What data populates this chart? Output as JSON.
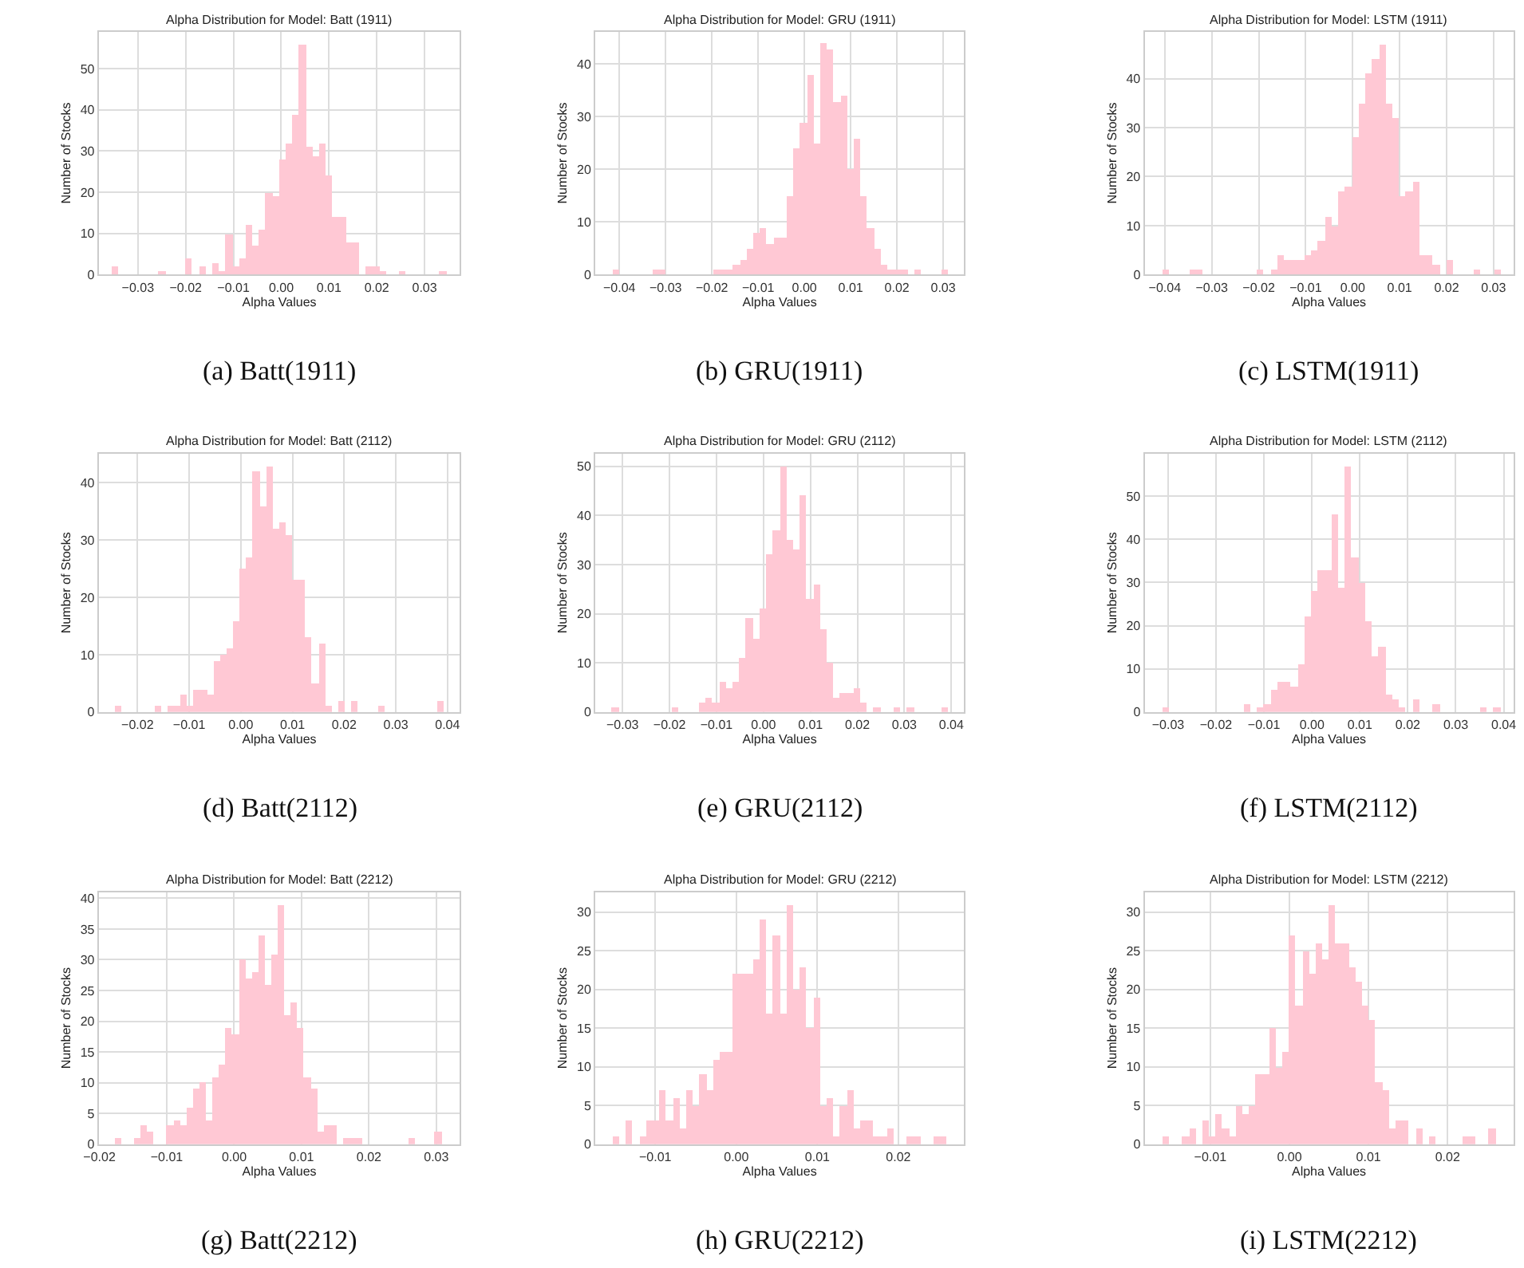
{
  "chart_data": [
    {
      "type": "histogram",
      "title": "Alpha Distribution for Model: Batt (1911)",
      "xlabel": "Alpha Values",
      "ylabel": "Number of Stocks",
      "annotations": [
        "(a) Batt(1911)"
      ],
      "color": "#ffc8d4",
      "grid": true,
      "bins": [
        -0.0355,
        -0.0341,
        -0.0327,
        -0.0313,
        -0.0299,
        -0.0285,
        -0.0271,
        -0.0257,
        -0.0243,
        -0.0229,
        -0.0215,
        -0.0201,
        -0.0187,
        -0.0173,
        -0.0159,
        -0.0145,
        -0.0131,
        -0.0117,
        -0.0103,
        -0.0089,
        -0.0075,
        -0.0061,
        -0.0047,
        -0.0033,
        -0.0019,
        -0.0005,
        0.0009,
        0.0023,
        0.0037,
        0.0051,
        0.0065,
        0.0079,
        0.0093,
        0.0107,
        0.0121,
        0.0135,
        0.0149,
        0.0163,
        0.0177,
        0.0191,
        0.0205,
        0.0219,
        0.0233,
        0.0247,
        0.0261,
        0.0275,
        0.0289,
        0.0303,
        0.0317,
        0.0331,
        0.0345
      ],
      "values": [
        2,
        0,
        0,
        0,
        0,
        0,
        0,
        1,
        0,
        0,
        0,
        4,
        0,
        2,
        0,
        3,
        1,
        10,
        2,
        4,
        12,
        7,
        11,
        20,
        19,
        28,
        32,
        39,
        56,
        31,
        29,
        32,
        24,
        14,
        14,
        8,
        8,
        0,
        2,
        2,
        1,
        0,
        0,
        1,
        0,
        0,
        0,
        0,
        0,
        1
      ],
      "xlim": [
        -0.0382,
        0.0374
      ],
      "xticks": [
        {
          "value": -0.03,
          "label": "−0.03"
        },
        {
          "value": -0.02,
          "label": "−0.02"
        },
        {
          "value": -0.01,
          "label": "−0.01"
        },
        {
          "value": 0,
          "label": "0.00"
        },
        {
          "value": 0.01,
          "label": "0.01"
        },
        {
          "value": 0.02,
          "label": "0.02"
        },
        {
          "value": 0.03,
          "label": "0.03"
        }
      ],
      "ylim": [
        0,
        59
      ],
      "yticks": [
        0,
        10,
        20,
        30,
        40,
        50
      ]
    },
    {
      "type": "histogram",
      "title": "Alpha Distribution for Model: GRU (1911)",
      "xlabel": "Alpha Values",
      "ylabel": "Number of Stocks",
      "annotations": [
        "(b) GRU(1911)"
      ],
      "color": "#ffc8d4",
      "grid": true,
      "bins": [
        -0.0415,
        -0.04005,
        -0.0386,
        -0.03715,
        -0.0357,
        -0.03425,
        -0.0328,
        -0.03135,
        -0.0299,
        -0.02845,
        -0.027,
        -0.02555,
        -0.0241,
        -0.02265,
        -0.0212,
        -0.01975,
        -0.0183,
        -0.01685,
        -0.0154,
        -0.01395,
        -0.0125,
        -0.01105,
        -0.0096,
        -0.00815,
        -0.0067,
        -0.00525,
        -0.0038,
        -0.00235,
        -0.0009,
        0.00055,
        0.002,
        0.00345,
        0.0049,
        0.00635,
        0.0078,
        0.00925,
        0.0107,
        0.01215,
        0.0136,
        0.01505,
        0.0165,
        0.01795,
        0.0194,
        0.02085,
        0.0223,
        0.02375,
        0.0252,
        0.02665,
        0.0281,
        0.02955,
        0.031
      ],
      "values": [
        1,
        0,
        0,
        0,
        0,
        0,
        1,
        1,
        0,
        0,
        0,
        0,
        0,
        0,
        0,
        1,
        1,
        1,
        2,
        3,
        5,
        8,
        9,
        6,
        7,
        7,
        15,
        24,
        29,
        38,
        25,
        44,
        43,
        33,
        34,
        20,
        26,
        15,
        9,
        5,
        2,
        1,
        1,
        1,
        0,
        1,
        0,
        0,
        0,
        1
      ],
      "xlim": [
        -0.0452,
        0.0345
      ],
      "xticks": [
        {
          "value": -0.04,
          "label": "−0.04"
        },
        {
          "value": -0.03,
          "label": "−0.03"
        },
        {
          "value": -0.02,
          "label": "−0.02"
        },
        {
          "value": -0.01,
          "label": "−0.01"
        },
        {
          "value": 0,
          "label": "0.00"
        },
        {
          "value": 0.01,
          "label": "0.01"
        },
        {
          "value": 0.02,
          "label": "0.02"
        },
        {
          "value": 0.03,
          "label": "0.03"
        }
      ],
      "ylim": [
        0,
        46.2
      ],
      "yticks": [
        0,
        10,
        20,
        30,
        40
      ]
    },
    {
      "type": "histogram",
      "title": "Alpha Distribution for Model: LSTM (1911)",
      "xlabel": "Alpha Values",
      "ylabel": "Number of Stocks",
      "annotations": [
        "(c) LSTM(1911)"
      ],
      "color": "#ffc8d4",
      "grid": true,
      "bins": [
        -0.0406,
        -0.03916,
        -0.03772,
        -0.03628,
        -0.03484,
        -0.0334,
        -0.03196,
        -0.03052,
        -0.02908,
        -0.02764,
        -0.0262,
        -0.02476,
        -0.02332,
        -0.02188,
        -0.02044,
        -0.019,
        -0.01756,
        -0.01612,
        -0.01468,
        -0.01324,
        -0.0118,
        -0.01036,
        -0.00892,
        -0.00748,
        -0.00604,
        -0.0046,
        -0.00316,
        -0.00172,
        -0.00028,
        0.00116,
        0.0026,
        0.00404,
        0.00548,
        0.00692,
        0.00836,
        0.0098,
        0.01124,
        0.01268,
        0.01412,
        0.01556,
        0.017,
        0.01844,
        0.01988,
        0.02132,
        0.02276,
        0.0242,
        0.02564,
        0.02708,
        0.02852,
        0.02996,
        0.0314
      ],
      "values": [
        1,
        0,
        0,
        0,
        1,
        1,
        0,
        0,
        0,
        0,
        0,
        0,
        0,
        0,
        1,
        0,
        1,
        4,
        3,
        3,
        3,
        4,
        5,
        7,
        12,
        10,
        17,
        18,
        28,
        35,
        41,
        44,
        47,
        35,
        32,
        16,
        17,
        19,
        4,
        4,
        2,
        0,
        3,
        0,
        0,
        0,
        1,
        0,
        0,
        1
      ],
      "xlim": [
        -0.0443,
        0.0342
      ],
      "xticks": [
        {
          "value": -0.04,
          "label": "−0.04"
        },
        {
          "value": -0.03,
          "label": "−0.03"
        },
        {
          "value": -0.02,
          "label": "−0.02"
        },
        {
          "value": -0.01,
          "label": "−0.01"
        },
        {
          "value": 0,
          "label": "0.00"
        },
        {
          "value": 0.01,
          "label": "0.01"
        },
        {
          "value": 0.02,
          "label": "0.02"
        },
        {
          "value": 0.03,
          "label": "0.03"
        }
      ],
      "ylim": [
        0,
        49.6
      ],
      "yticks": [
        0,
        10,
        20,
        30,
        40
      ]
    },
    {
      "type": "histogram",
      "title": "Alpha Distribution for Model: Batt (2112)",
      "xlabel": "Alpha Values",
      "ylabel": "Number of Stocks",
      "annotations": [
        "(d) Batt(2112)"
      ],
      "color": "#ffc8d4",
      "grid": true,
      "bins": [
        -0.0244,
        -0.02313,
        -0.02186,
        -0.02059,
        -0.01932,
        -0.01805,
        -0.01678,
        -0.01551,
        -0.01424,
        -0.01297,
        -0.0117,
        -0.01043,
        -0.00916,
        -0.00789,
        -0.00662,
        -0.00535,
        -0.00408,
        -0.00281,
        -0.00154,
        -0.00027,
        0.001,
        0.00227,
        0.00354,
        0.00481,
        0.00608,
        0.00735,
        0.00862,
        0.00989,
        0.01116,
        0.01243,
        0.0137,
        0.01497,
        0.01624,
        0.01751,
        0.01878,
        0.02005,
        0.02132,
        0.02259,
        0.02386,
        0.02513,
        0.0264,
        0.02767,
        0.02894,
        0.03021,
        0.03148,
        0.03275,
        0.03402,
        0.03529,
        0.03656,
        0.03783,
        0.0391
      ],
      "values": [
        1,
        0,
        0,
        0,
        0,
        0,
        1,
        0,
        1,
        1,
        3,
        1,
        4,
        4,
        3,
        9,
        10,
        11,
        16,
        25,
        27,
        42,
        36,
        43,
        32,
        33,
        31,
        23,
        23,
        13,
        5,
        12,
        1,
        0,
        2,
        0,
        2,
        0,
        0,
        0,
        1,
        0,
        0,
        0,
        0,
        0,
        0,
        0,
        0,
        2
      ],
      "xlim": [
        -0.0275,
        0.0424
      ],
      "xticks": [
        {
          "value": -0.02,
          "label": "−0.02"
        },
        {
          "value": -0.01,
          "label": "−0.01"
        },
        {
          "value": 0,
          "label": "0.00"
        },
        {
          "value": 0.01,
          "label": "0.01"
        },
        {
          "value": 0.02,
          "label": "0.02"
        },
        {
          "value": 0.03,
          "label": "0.03"
        },
        {
          "value": 0.04,
          "label": "0.04"
        }
      ],
      "ylim": [
        0,
        45.1
      ],
      "yticks": [
        0,
        10,
        20,
        30,
        40
      ]
    },
    {
      "type": "histogram",
      "title": "Alpha Distribution for Model: GRU (2112)",
      "xlabel": "Alpha Values",
      "ylabel": "Number of Stocks",
      "annotations": [
        "(e) GRU(2112)"
      ],
      "color": "#ffc8d4",
      "grid": true,
      "bins": [
        -0.0323,
        -0.03087,
        -0.02944,
        -0.02801,
        -0.02658,
        -0.02515,
        -0.02372,
        -0.02229,
        -0.02086,
        -0.01943,
        -0.018,
        -0.01657,
        -0.01514,
        -0.01371,
        -0.01228,
        -0.01085,
        -0.00942,
        -0.00799,
        -0.00656,
        -0.00513,
        -0.0037,
        -0.00227,
        -0.00084,
        0.00059,
        0.00202,
        0.00345,
        0.00488,
        0.00631,
        0.00774,
        0.00917,
        0.0106,
        0.01203,
        0.01346,
        0.01489,
        0.01632,
        0.01775,
        0.01918,
        0.02061,
        0.02204,
        0.02347,
        0.0249,
        0.02633,
        0.02776,
        0.02919,
        0.03062,
        0.03205,
        0.03348,
        0.03491,
        0.03634,
        0.03777,
        0.0392
      ],
      "values": [
        1,
        0,
        0,
        0,
        0,
        0,
        0,
        0,
        0,
        1,
        0,
        0,
        0,
        2,
        3,
        2,
        6,
        5,
        6,
        11,
        19,
        15,
        21,
        32,
        37,
        50,
        35,
        33,
        44,
        23,
        26,
        17,
        10,
        3,
        4,
        4,
        5,
        2,
        0,
        1,
        0,
        0,
        1,
        0,
        1,
        0,
        0,
        0,
        0,
        1
      ],
      "xlim": [
        -0.0358,
        0.0427
      ],
      "xticks": [
        {
          "value": -0.03,
          "label": "−0.03"
        },
        {
          "value": -0.02,
          "label": "−0.02"
        },
        {
          "value": -0.01,
          "label": "−0.01"
        },
        {
          "value": 0,
          "label": "0.00"
        },
        {
          "value": 0.01,
          "label": "0.01"
        },
        {
          "value": 0.02,
          "label": "0.02"
        },
        {
          "value": 0.03,
          "label": "0.03"
        },
        {
          "value": 0.04,
          "label": "0.04"
        }
      ],
      "ylim": [
        0,
        52.6
      ],
      "yticks": [
        0,
        10,
        20,
        30,
        40,
        50
      ]
    },
    {
      "type": "histogram",
      "title": "Alpha Distribution for Model: LSTM (2112)",
      "xlabel": "Alpha Values",
      "ylabel": "Number of Stocks",
      "annotations": [
        "(f) LSTM(2112)"
      ],
      "color": "#ffc8d4",
      "grid": true,
      "bins": [
        -0.0313,
        -0.02989,
        -0.02848,
        -0.02707,
        -0.02566,
        -0.02425,
        -0.02284,
        -0.02143,
        -0.02002,
        -0.01861,
        -0.0172,
        -0.01579,
        -0.01438,
        -0.01297,
        -0.01156,
        -0.01015,
        -0.00874,
        -0.00733,
        -0.00592,
        -0.00451,
        -0.0031,
        -0.00169,
        -0.00028,
        0.00113,
        0.00254,
        0.00395,
        0.00536,
        0.00677,
        0.00818,
        0.00959,
        0.011,
        0.01241,
        0.01382,
        0.01523,
        0.01664,
        0.01805,
        0.01946,
        0.02087,
        0.02228,
        0.02369,
        0.0251,
        0.02651,
        0.02792,
        0.02933,
        0.03074,
        0.03215,
        0.03356,
        0.03497,
        0.03638,
        0.03779,
        0.0392
      ],
      "values": [
        1,
        0,
        0,
        0,
        0,
        0,
        0,
        0,
        0,
        0,
        0,
        0,
        2,
        0,
        1,
        2,
        5,
        7,
        7,
        6,
        11,
        22,
        28,
        33,
        33,
        46,
        29,
        57,
        36,
        30,
        21,
        13,
        15,
        4,
        3,
        1,
        0,
        3,
        0,
        0,
        2,
        0,
        0,
        0,
        0,
        0,
        0,
        1,
        0,
        1
      ],
      "xlim": [
        -0.0349,
        0.042
      ],
      "xticks": [
        {
          "value": -0.03,
          "label": "−0.03"
        },
        {
          "value": -0.02,
          "label": "−0.02"
        },
        {
          "value": -0.01,
          "label": "−0.01"
        },
        {
          "value": 0,
          "label": "0.00"
        },
        {
          "value": 0.01,
          "label": "0.01"
        },
        {
          "value": 0.02,
          "label": "0.02"
        },
        {
          "value": 0.03,
          "label": "0.03"
        },
        {
          "value": 0.04,
          "label": "0.04"
        }
      ],
      "ylim": [
        0,
        59.9
      ],
      "yticks": [
        0,
        10,
        20,
        30,
        40,
        50
      ]
    },
    {
      "type": "histogram",
      "title": "Alpha Distribution for Model: Batt (2212)",
      "xlabel": "Alpha Values",
      "ylabel": "Number of Stocks",
      "annotations": [
        "(g) Batt(2212)"
      ],
      "color": "#ffc8d4",
      "grid": true,
      "bins": [
        -0.0178,
        -0.01683,
        -0.01586,
        -0.01489,
        -0.01392,
        -0.01295,
        -0.01198,
        -0.01101,
        -0.01004,
        -0.00907,
        -0.0081,
        -0.00713,
        -0.00616,
        -0.00519,
        -0.00422,
        -0.00325,
        -0.00228,
        -0.00131,
        -0.00034,
        0.00063,
        0.0016,
        0.00257,
        0.00354,
        0.00451,
        0.00548,
        0.00645,
        0.00742,
        0.00839,
        0.00936,
        0.01033,
        0.0113,
        0.01227,
        0.01324,
        0.01421,
        0.01518,
        0.01615,
        0.01712,
        0.01809,
        0.01906,
        0.02003,
        0.021,
        0.02197,
        0.02294,
        0.02391,
        0.02488,
        0.02585,
        0.02682,
        0.02779,
        0.02876,
        0.02973,
        0.0307
      ],
      "values": [
        1,
        0,
        0,
        1,
        3,
        2,
        0,
        0,
        3,
        4,
        3,
        6,
        9,
        10,
        4,
        11,
        13,
        19,
        18,
        30,
        27,
        28,
        34,
        26,
        31,
        39,
        21,
        23,
        19,
        11,
        9,
        2,
        3,
        3,
        0,
        1,
        1,
        1,
        0,
        0,
        0,
        0,
        0,
        0,
        0,
        1,
        0,
        0,
        0,
        2
      ],
      "xlim": [
        -0.0201,
        0.0335
      ],
      "xticks": [
        {
          "value": -0.02,
          "label": "−0.02"
        },
        {
          "value": -0.01,
          "label": "−0.01"
        },
        {
          "value": 0,
          "label": "0.00"
        },
        {
          "value": 0.01,
          "label": "0.01"
        },
        {
          "value": 0.02,
          "label": "0.02"
        },
        {
          "value": 0.03,
          "label": "0.03"
        }
      ],
      "ylim": [
        0,
        41
      ],
      "yticks": [
        0,
        5,
        10,
        15,
        20,
        25,
        30,
        35,
        40
      ]
    },
    {
      "type": "histogram",
      "title": "Alpha Distribution for Model: GRU (2212)",
      "xlabel": "Alpha Values",
      "ylabel": "Number of Stocks",
      "annotations": [
        "(h) GRU(2212)"
      ],
      "color": "#ffc8d4",
      "grid": true,
      "bins": [
        -0.01525,
        -0.014425,
        -0.0136,
        -0.012775,
        -0.01195,
        -0.011125,
        -0.0103,
        -0.009475,
        -0.00865,
        -0.007825,
        -0.007,
        -0.006175,
        -0.00535,
        -0.004525,
        -0.0037,
        -0.002875,
        -0.00205,
        -0.001225,
        -0.0004,
        0.000425,
        0.00125,
        0.002075,
        0.0029,
        0.003725,
        0.00455,
        0.005375,
        0.0062,
        0.007025,
        0.00785,
        0.008675,
        0.0095,
        0.010325,
        0.01115,
        0.011975,
        0.0128,
        0.013625,
        0.01445,
        0.015275,
        0.0161,
        0.016925,
        0.01775,
        0.018575,
        0.0194,
        0.020225,
        0.02105,
        0.021875,
        0.0227,
        0.023525,
        0.02435,
        0.025175,
        0.026
      ],
      "values": [
        1,
        0,
        3,
        0,
        1,
        3,
        3,
        7,
        3,
        6,
        2,
        7,
        5,
        9,
        7,
        11,
        12,
        12,
        22,
        22,
        22,
        24,
        29,
        17,
        27,
        17,
        31,
        20,
        23,
        15,
        19,
        5,
        6,
        1,
        5,
        7,
        2,
        3,
        3,
        1,
        1,
        2,
        0,
        0,
        1,
        1,
        0,
        0,
        1,
        1
      ],
      "xlim": [
        -0.0174,
        0.0281
      ],
      "xticks": [
        {
          "value": -0.01,
          "label": "−0.01"
        },
        {
          "value": 0,
          "label": "0.00"
        },
        {
          "value": 0.01,
          "label": "0.01"
        },
        {
          "value": 0.02,
          "label": "0.02"
        }
      ],
      "ylim": [
        0,
        32.6
      ],
      "yticks": [
        0,
        5,
        10,
        15,
        20,
        25,
        30
      ]
    },
    {
      "type": "histogram",
      "title": "Alpha Distribution for Model: LSTM (2212)",
      "xlabel": "Alpha Values",
      "ylabel": "Number of Stocks",
      "annotations": [
        "(i) LSTM(2212)"
      ],
      "color": "#ffc8d4",
      "grid": true,
      "bins": [
        -0.0161,
        -0.015258,
        -0.014416,
        -0.013574,
        -0.012732,
        -0.01189,
        -0.011048,
        -0.010206,
        -0.009364,
        -0.008522,
        -0.00768,
        -0.006838,
        -0.005996,
        -0.005154,
        -0.004312,
        -0.00347,
        -0.002628,
        -0.001786,
        -0.000944,
        -0.000102,
        0.00074,
        0.001582,
        0.002424,
        0.003266,
        0.004108,
        0.00495,
        0.005792,
        0.006634,
        0.007476,
        0.008318,
        0.00916,
        0.010002,
        0.010844,
        0.011686,
        0.012528,
        0.01337,
        0.014212,
        0.015054,
        0.015896,
        0.016738,
        0.01758,
        0.018422,
        0.019264,
        0.020106,
        0.020948,
        0.02179,
        0.022632,
        0.023474,
        0.024316,
        0.025158,
        0.026
      ],
      "values": [
        1,
        0,
        0,
        1,
        2,
        0,
        3,
        1,
        4,
        2,
        1,
        5,
        4,
        5,
        9,
        9,
        15,
        10,
        12,
        27,
        18,
        25,
        22,
        26,
        24,
        31,
        26,
        26,
        23,
        21,
        18,
        16,
        8,
        7,
        2,
        3,
        3,
        0,
        2,
        0,
        1,
        0,
        0,
        0,
        0,
        1,
        1,
        0,
        0,
        2
      ],
      "xlim": [
        -0.0183,
        0.0283
      ],
      "xticks": [
        {
          "value": -0.01,
          "label": "−0.01"
        },
        {
          "value": 0,
          "label": "0.00"
        },
        {
          "value": 0.01,
          "label": "0.01"
        },
        {
          "value": 0.02,
          "label": "0.02"
        }
      ],
      "ylim": [
        0,
        32.6
      ],
      "yticks": [
        0,
        5,
        10,
        15,
        20,
        25,
        30
      ]
    }
  ]
}
